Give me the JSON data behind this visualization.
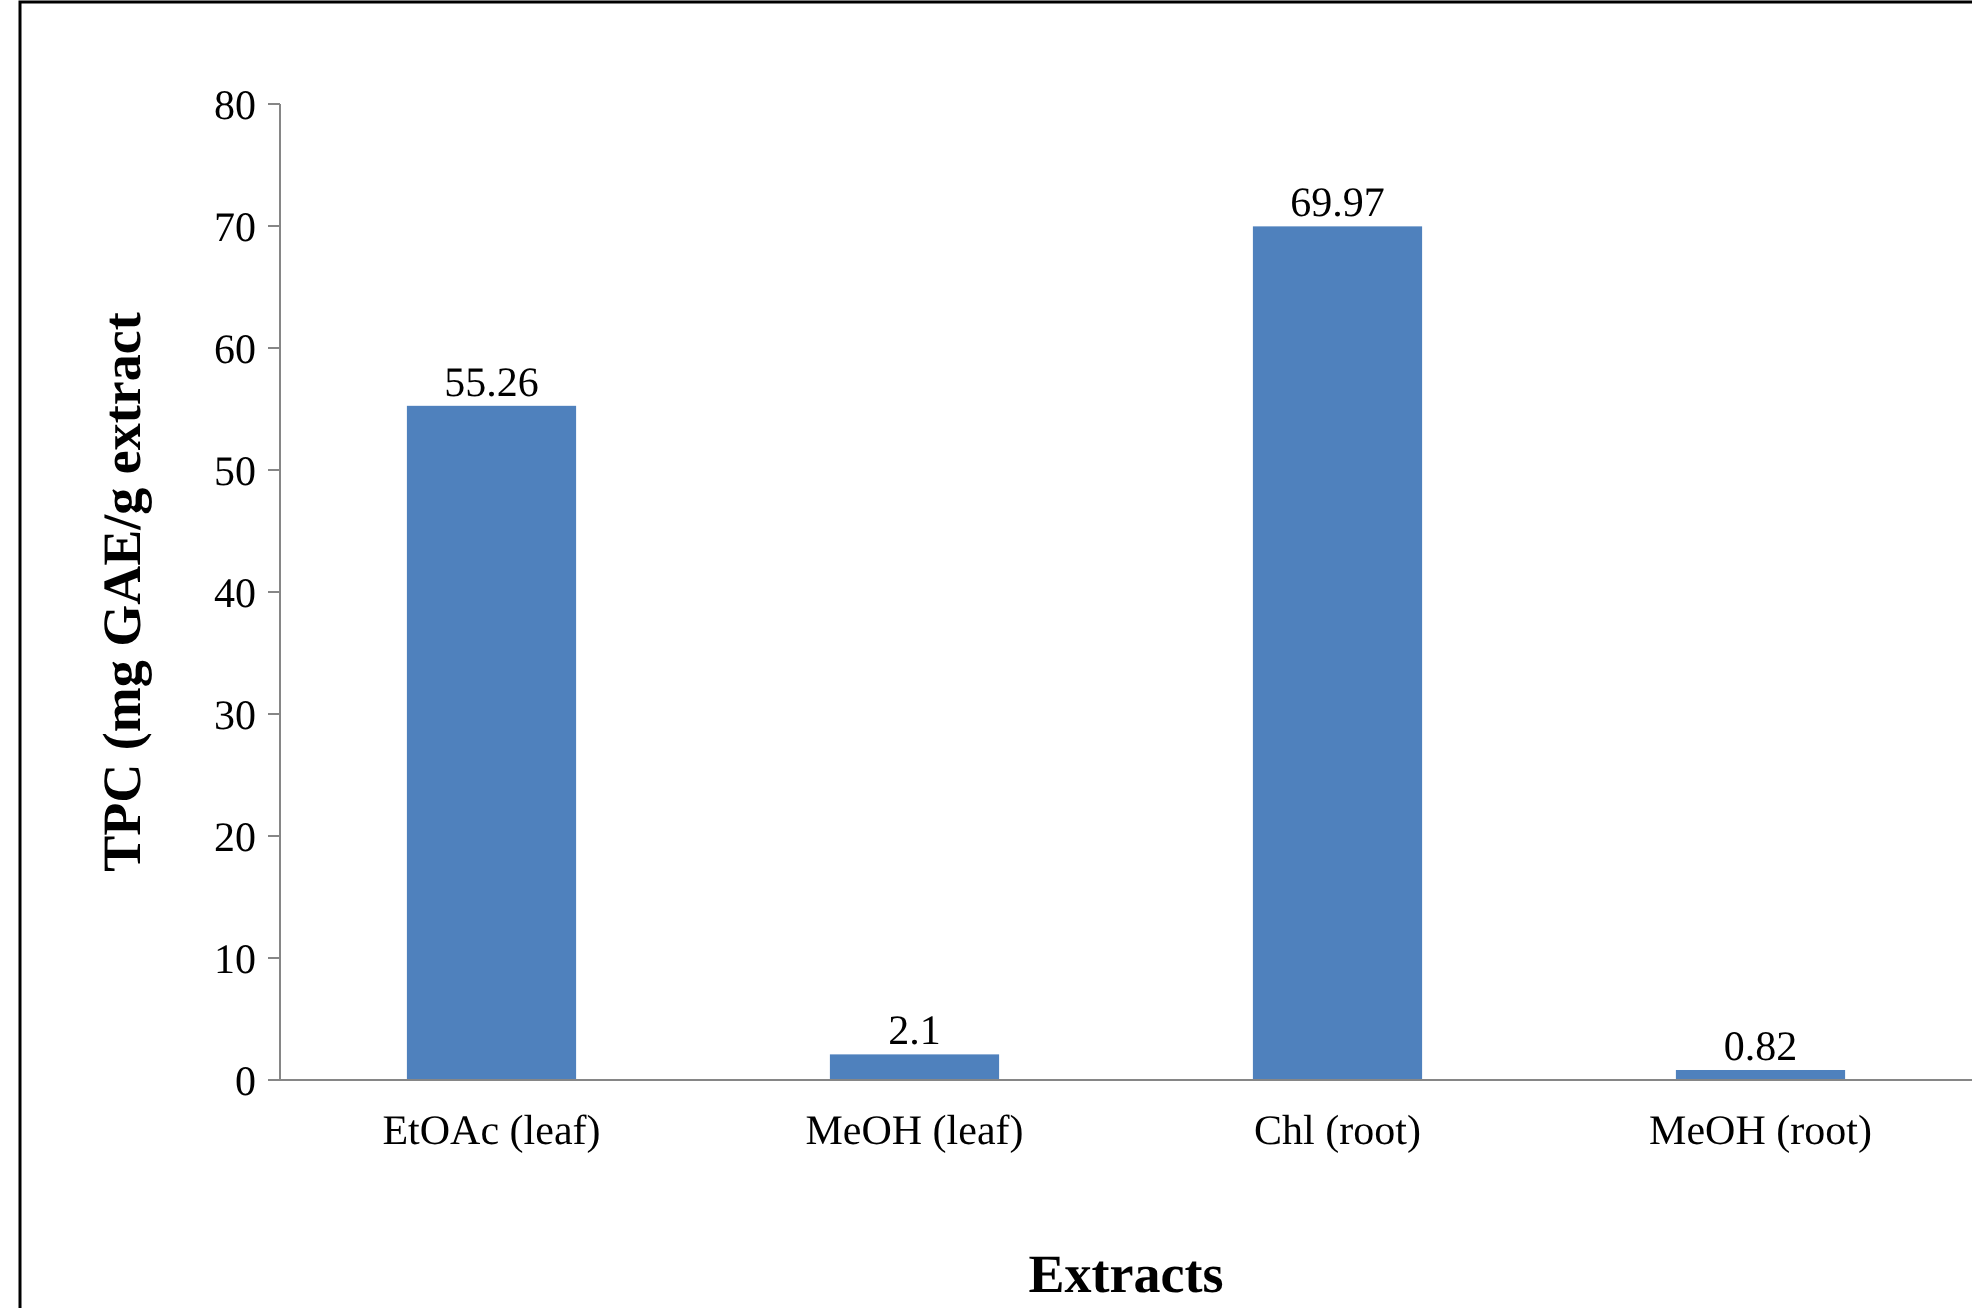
{
  "chart_data": {
    "type": "bar",
    "xlabel": "Extracts",
    "ylabel": "TPC (mg GAE/g extract",
    "categories": [
      "EtOAc (leaf)",
      "MeOH (leaf)",
      "Chl (root)",
      "MeOH (root)"
    ],
    "values": [
      55.26,
      2.1,
      69.97,
      0.82
    ],
    "color": "#4f81bd",
    "ylim": [
      0,
      80
    ],
    "yticks": [
      0,
      10,
      20,
      30,
      40,
      50,
      60,
      70,
      80
    ],
    "grid": false,
    "data_labels": true
  }
}
